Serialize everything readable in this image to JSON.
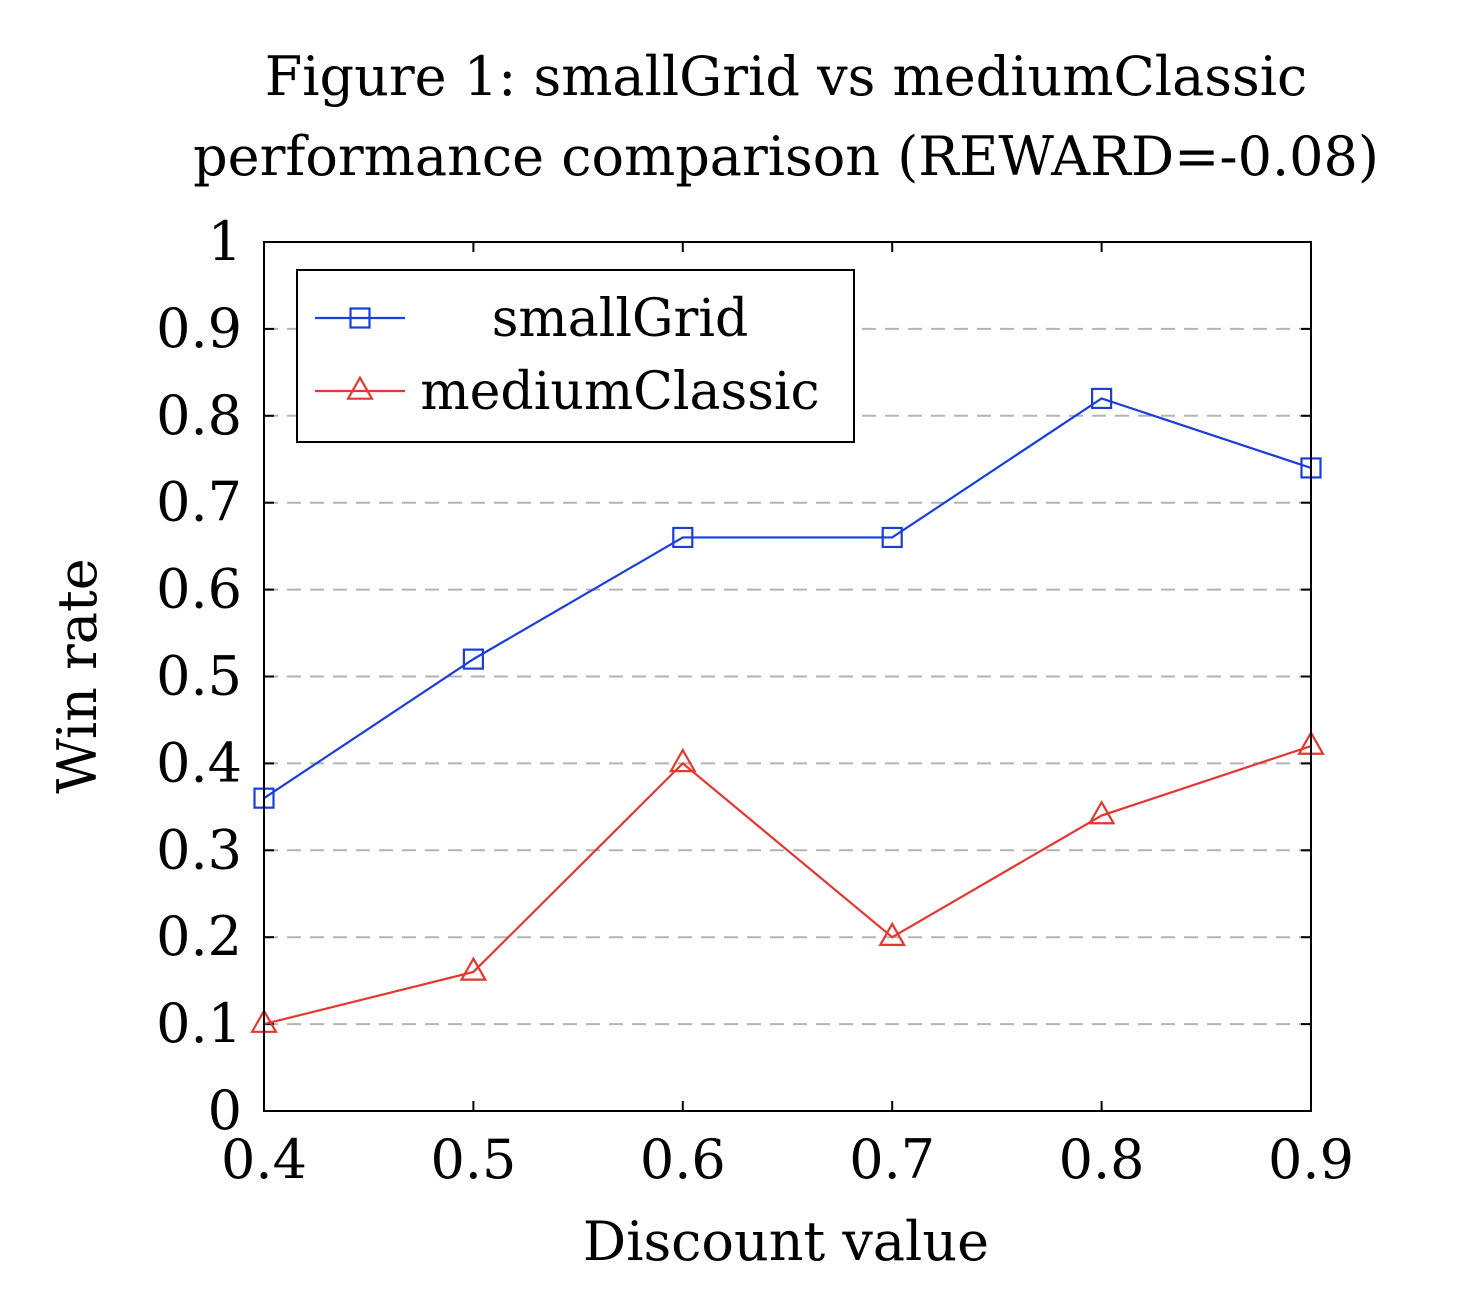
{
  "chart_data": {
    "type": "line",
    "title_lines": [
      "Figure 1: smallGrid vs mediumClassic",
      "performance comparison (REWARD=-0.08)"
    ],
    "xlabel": "Discount value",
    "ylabel": "Win rate",
    "x": [
      0.4,
      0.5,
      0.6,
      0.7,
      0.8,
      0.9
    ],
    "x_tick_labels": [
      "0.4",
      "0.5",
      "0.6",
      "0.7",
      "0.8",
      "0.9"
    ],
    "y_tick_labels": [
      "0",
      "0.1",
      "0.2",
      "0.3",
      "0.4",
      "0.5",
      "0.6",
      "0.7",
      "0.8",
      "0.9",
      "1"
    ],
    "xlim": [
      0.4,
      0.9
    ],
    "ylim": [
      0,
      1
    ],
    "grid": "horizontal-dashed",
    "legend_position": "top-left",
    "series": [
      {
        "name": "smallGrid",
        "values": [
          0.36,
          0.52,
          0.66,
          0.66,
          0.82,
          0.74
        ],
        "color": "#1a3fd9",
        "marker": "square"
      },
      {
        "name": "mediumClassic",
        "values": [
          0.1,
          0.16,
          0.4,
          0.2,
          0.34,
          0.42
        ],
        "color": "#e3372f",
        "marker": "triangle"
      }
    ]
  }
}
